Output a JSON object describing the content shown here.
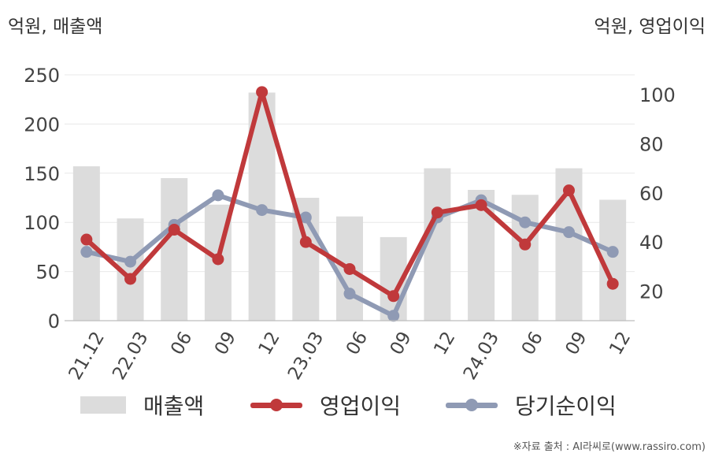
{
  "units": {
    "left": "억원, 매출액",
    "right": "억원, 영업이익"
  },
  "source": "※자료 출처 : AI라씨로(www.rassiro.com)",
  "chart_data": {
    "type": "bar+line",
    "categories": [
      "21.12",
      "22.03",
      "06",
      "09",
      "12",
      "23.03",
      "06",
      "09",
      "12",
      "24.03",
      "06",
      "09",
      "12"
    ],
    "left_axis": {
      "min": 0,
      "max": 250,
      "ticks": [
        0,
        50,
        100,
        150,
        200,
        250
      ]
    },
    "right_axis": {
      "min": 8,
      "max": 108,
      "ticks": [
        20,
        40,
        60,
        80,
        100
      ]
    },
    "grid": true,
    "legend_position": "bottom",
    "series": [
      {
        "name": "매출액",
        "type": "bar",
        "axis": "left",
        "color": "#dcdcdc",
        "values": [
          157,
          104,
          145,
          118,
          232,
          125,
          106,
          85,
          155,
          133,
          128,
          155,
          123
        ]
      },
      {
        "name": "영업이익",
        "type": "line",
        "axis": "right",
        "color": "#c0393b",
        "values": [
          41,
          25,
          45,
          33,
          101,
          40,
          29,
          18,
          52,
          55,
          39,
          61,
          23
        ]
      },
      {
        "name": "당기순이익",
        "type": "line",
        "axis": "right",
        "color": "#8f9ab4",
        "values": [
          36,
          32,
          47,
          59,
          53,
          50,
          19,
          10,
          50,
          57,
          48,
          44,
          36
        ]
      }
    ]
  }
}
